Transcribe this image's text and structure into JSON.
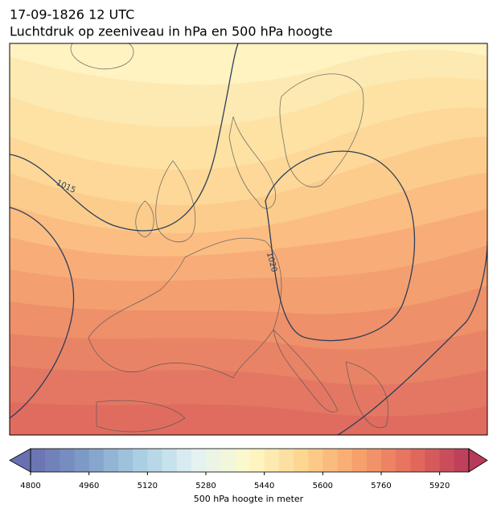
{
  "header": {
    "title": "17-09-1826 12 UTC",
    "subtitle": "Luchtdruk op zeeniveau in hPa en 500 hPa hoogte"
  },
  "map": {
    "contour_labels": [
      "1015",
      "1020"
    ]
  },
  "colorbar": {
    "label": "500 hPa hoogte in meter",
    "range": [
      4800,
      6000
    ],
    "ticks": [
      4800,
      4960,
      5120,
      5280,
      5440,
      5600,
      5760,
      5920
    ],
    "step": 40,
    "colors": [
      "#6870b0",
      "#7f9cc8",
      "#a9cfe3",
      "#e2f2f4",
      "#fdf9c8",
      "#fdd38e",
      "#f7a06c",
      "#e46a5c",
      "#b83a5a"
    ]
  }
}
